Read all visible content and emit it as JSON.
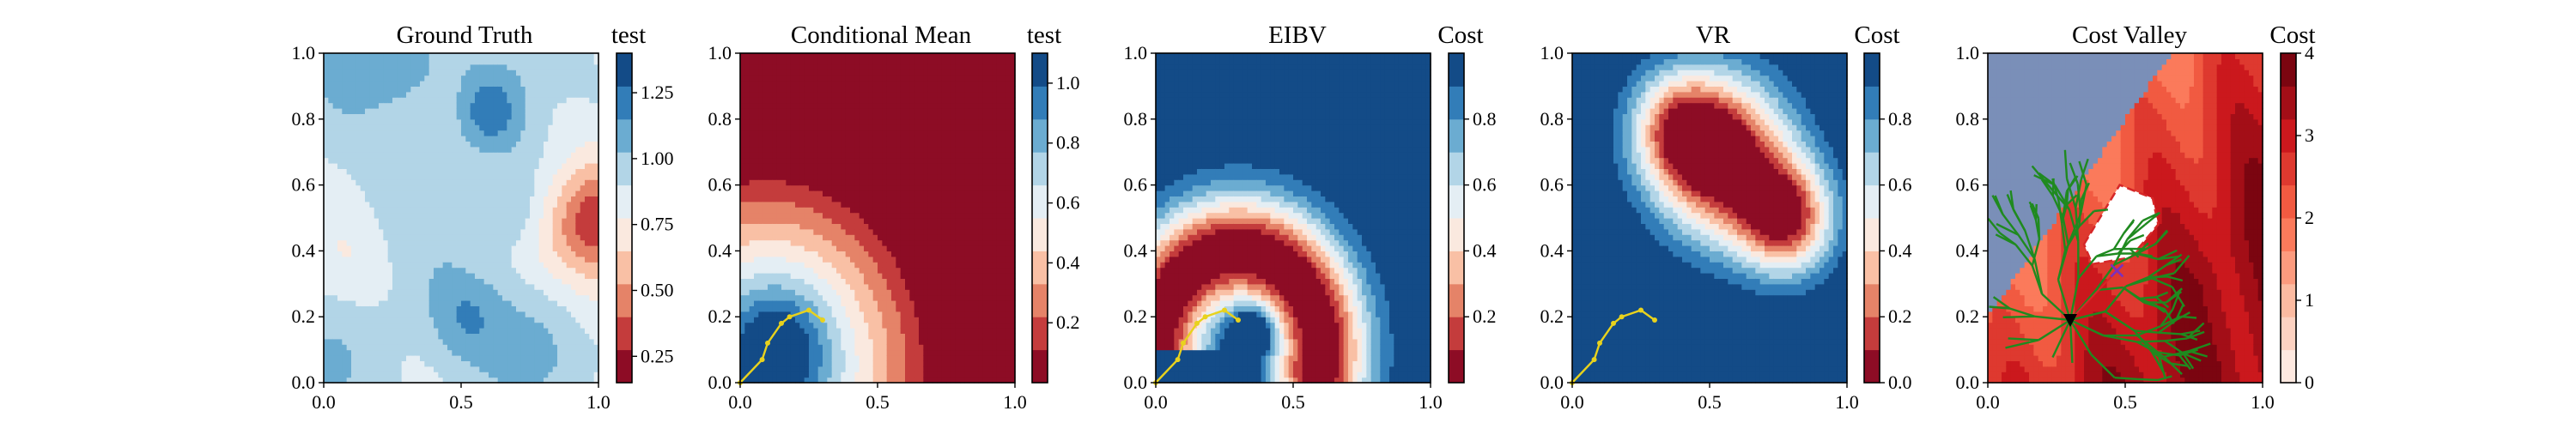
{
  "figure": {
    "colormaps": {
      "rdbu": [
        "#67001f",
        "#b2182b",
        "#d6604d",
        "#f4a582",
        "#fddbc7",
        "#f7f7f7",
        "#d1e5f0",
        "#92c5de",
        "#4393c3",
        "#2166ac",
        "#053061"
      ],
      "reds": [
        "#fff5f0",
        "#fcbba1",
        "#fb6a4a",
        "#cb181d",
        "#67000d"
      ]
    },
    "path_color": "#e8d21d",
    "tree_color": "#1f8a1f",
    "cost_region_color": "#7a8fb8"
  },
  "chart_data": [
    {
      "type": "heatmap",
      "title": "Ground Truth",
      "colorbar_label": "test",
      "field": "ground_truth",
      "colormap": "rdbu",
      "xlim": [
        0,
        1
      ],
      "ylim": [
        0,
        1
      ],
      "xticks": [
        "0.0",
        "0.5",
        "1.0"
      ],
      "yticks": [
        "0.0",
        "0.2",
        "0.4",
        "0.6",
        "0.8",
        "1.0"
      ],
      "colorbar_range": [
        0.15,
        1.4
      ],
      "colorbar_ticks": [
        "0.25",
        "0.50",
        "0.75",
        "1.00",
        "1.25"
      ],
      "colorbar_tick_values": [
        0.25,
        0.5,
        0.75,
        1.0,
        1.25
      ]
    },
    {
      "type": "heatmap",
      "title": "Conditional Mean",
      "colorbar_label": "test",
      "field": "conditional_mean",
      "colormap": "rdbu",
      "xlim": [
        0,
        1
      ],
      "ylim": [
        0,
        1
      ],
      "xticks": [
        "0.0",
        "0.5",
        "1.0"
      ],
      "yticks": [
        "0.0",
        "0.2",
        "0.4",
        "0.6",
        "0.8",
        "1.0"
      ],
      "colorbar_range": [
        0.0,
        1.1
      ],
      "colorbar_ticks": [
        "0.2",
        "0.4",
        "0.6",
        "0.8",
        "1.0"
      ],
      "colorbar_tick_values": [
        0.2,
        0.4,
        0.6,
        0.8,
        1.0
      ],
      "path": {
        "x": [
          0.0,
          0.08,
          0.1,
          0.15,
          0.18,
          0.25,
          0.3
        ],
        "y": [
          0.0,
          0.07,
          0.12,
          0.18,
          0.2,
          0.22,
          0.19
        ]
      }
    },
    {
      "type": "heatmap",
      "title": "EIBV",
      "colorbar_label": "Cost",
      "field": "eibv",
      "colormap": "rdbu",
      "xlim": [
        0,
        1
      ],
      "ylim": [
        0,
        1
      ],
      "xticks": [
        "0.0",
        "0.5",
        "1.0"
      ],
      "yticks": [
        "0.0",
        "0.2",
        "0.4",
        "0.6",
        "0.8",
        "1.0"
      ],
      "colorbar_range": [
        0.0,
        1.0
      ],
      "colorbar_ticks": [
        "0.2",
        "0.4",
        "0.6",
        "0.8"
      ],
      "colorbar_tick_values": [
        0.2,
        0.4,
        0.6,
        0.8
      ],
      "path": {
        "x": [
          0.0,
          0.08,
          0.1,
          0.15,
          0.18,
          0.25,
          0.3
        ],
        "y": [
          0.0,
          0.07,
          0.12,
          0.18,
          0.2,
          0.22,
          0.19
        ]
      }
    },
    {
      "type": "heatmap",
      "title": "VR",
      "colorbar_label": "Cost",
      "field": "vr",
      "colormap": "rdbu",
      "xlim": [
        0,
        1
      ],
      "ylim": [
        0,
        1
      ],
      "xticks": [
        "0.0",
        "0.5",
        "1.0"
      ],
      "yticks": [
        "0.0",
        "0.2",
        "0.4",
        "0.6",
        "0.8",
        "1.0"
      ],
      "colorbar_range": [
        0.0,
        1.0
      ],
      "colorbar_ticks": [
        "0.0",
        "0.2",
        "0.4",
        "0.6",
        "0.8"
      ],
      "colorbar_tick_values": [
        0.0,
        0.2,
        0.4,
        0.6,
        0.8
      ],
      "path": {
        "x": [
          0.0,
          0.08,
          0.1,
          0.15,
          0.18,
          0.25,
          0.3
        ],
        "y": [
          0.0,
          0.07,
          0.12,
          0.18,
          0.2,
          0.22,
          0.19
        ]
      }
    },
    {
      "type": "heatmap",
      "title": "Cost Valley",
      "colorbar_label": "Cost",
      "field": "cost_valley",
      "colormap": "reds",
      "xlim": [
        0,
        1
      ],
      "ylim": [
        0,
        1
      ],
      "xticks": [
        "0.0",
        "0.5",
        "1.0"
      ],
      "yticks": [
        "0.0",
        "0.2",
        "0.4",
        "0.6",
        "0.8",
        "1.0"
      ],
      "colorbar_range": [
        0,
        4
      ],
      "colorbar_ticks": [
        "0",
        "1",
        "2",
        "3",
        "4"
      ],
      "colorbar_tick_values": [
        0,
        1,
        2,
        3,
        4
      ],
      "polygon": {
        "x": [
          0.35,
          0.48,
          0.6,
          0.62,
          0.52,
          0.38
        ],
        "y": [
          0.42,
          0.6,
          0.56,
          0.48,
          0.38,
          0.36
        ]
      },
      "start_point": {
        "x": 0.3,
        "y": 0.19
      },
      "target_point": {
        "x": 0.47,
        "y": 0.34
      },
      "tree_root": {
        "x": 0.3,
        "y": 0.19
      }
    }
  ]
}
